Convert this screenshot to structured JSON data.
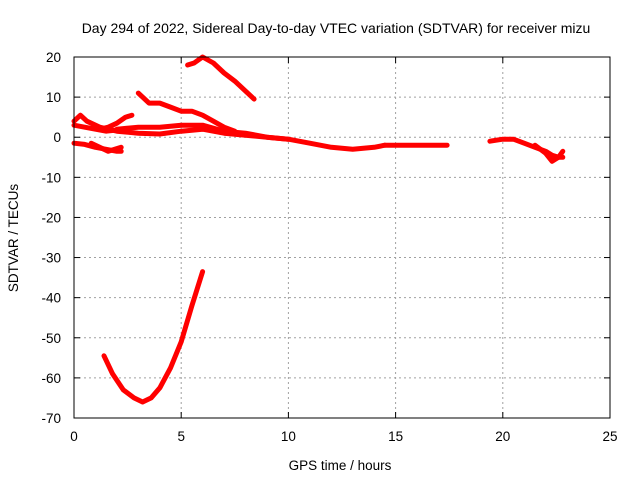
{
  "chart_data": {
    "type": "line",
    "title": "Day 294 of 2022, Sidereal Day-to-day VTEC variation (SDTVAR) for receiver mizu",
    "xlabel": "GPS time / hours",
    "ylabel": "SDTVAR / TECUs",
    "xlim": [
      0,
      25
    ],
    "ylim": [
      -70,
      20
    ],
    "xticks": [
      0,
      5,
      10,
      15,
      20,
      25
    ],
    "yticks": [
      20,
      10,
      0,
      -10,
      -20,
      -30,
      -40,
      -50,
      -60,
      -70
    ],
    "grid": true,
    "color": "#ff0000",
    "series": [
      {
        "name": "arc-1",
        "points": [
          [
            0,
            4
          ],
          [
            0.3,
            5.5
          ],
          [
            0.6,
            4
          ],
          [
            1.2,
            2.5
          ],
          [
            2,
            1.5
          ],
          [
            3,
            1
          ],
          [
            4,
            0.8
          ],
          [
            5,
            1.5
          ],
          [
            6,
            2
          ],
          [
            7,
            1
          ],
          [
            8,
            0.5
          ],
          [
            9,
            0
          ],
          [
            10,
            -0.5
          ],
          [
            11,
            -1.5
          ],
          [
            12,
            -2.5
          ],
          [
            13,
            -3
          ],
          [
            14,
            -2.5
          ],
          [
            14.5,
            -2
          ]
        ]
      },
      {
        "name": "arc-2",
        "points": [
          [
            0,
            -1.5
          ],
          [
            0.5,
            -1.8
          ],
          [
            1,
            -2.5
          ],
          [
            1.5,
            -3
          ],
          [
            2,
            -3.5
          ],
          [
            2.2,
            -3.5
          ]
        ]
      },
      {
        "name": "arc-3",
        "points": [
          [
            0,
            3
          ],
          [
            0.5,
            2.5
          ],
          [
            1,
            2
          ],
          [
            1.5,
            1.5
          ],
          [
            2,
            1.8
          ],
          [
            2.5,
            2
          ]
        ]
      },
      {
        "name": "arc-4",
        "points": [
          [
            0.8,
            -1.5
          ],
          [
            1.2,
            -2.5
          ],
          [
            1.6,
            -3.5
          ],
          [
            1.9,
            -3
          ],
          [
            2.2,
            -2.5
          ]
        ]
      },
      {
        "name": "arc-5",
        "points": [
          [
            1.2,
            2
          ],
          [
            1.6,
            2.5
          ],
          [
            2,
            3.5
          ],
          [
            2.4,
            5
          ],
          [
            2.7,
            5.5
          ]
        ]
      },
      {
        "name": "arc-6",
        "points": [
          [
            3,
            11
          ],
          [
            3.5,
            8.5
          ],
          [
            4,
            8.5
          ],
          [
            4.5,
            7.5
          ],
          [
            5,
            6.5
          ],
          [
            5.5,
            6.5
          ],
          [
            6,
            5.5
          ],
          [
            6.5,
            4
          ],
          [
            7,
            2.5
          ],
          [
            7.5,
            1.5
          ]
        ]
      },
      {
        "name": "arc-7",
        "points": [
          [
            2,
            2
          ],
          [
            3,
            2.5
          ],
          [
            4,
            2.5
          ],
          [
            5,
            3
          ],
          [
            6,
            3
          ],
          [
            7,
            1.5
          ],
          [
            8,
            1
          ],
          [
            9,
            0
          ],
          [
            10,
            -0.5
          ]
        ]
      },
      {
        "name": "arc-8",
        "points": [
          [
            5.3,
            18
          ],
          [
            5.6,
            18.5
          ],
          [
            6,
            20
          ],
          [
            6.5,
            18.5
          ],
          [
            7,
            16
          ],
          [
            7.5,
            14
          ],
          [
            8,
            11.5
          ],
          [
            8.4,
            9.5
          ]
        ]
      },
      {
        "name": "arc-9",
        "points": [
          [
            1.4,
            -54.5
          ],
          [
            1.8,
            -59
          ],
          [
            2.3,
            -63
          ],
          [
            2.8,
            -65
          ],
          [
            3.2,
            -66
          ],
          [
            3.6,
            -65
          ],
          [
            4,
            -62.5
          ],
          [
            4.5,
            -57.5
          ],
          [
            5,
            -51
          ],
          [
            5.5,
            -42
          ],
          [
            6,
            -33.5
          ]
        ]
      },
      {
        "name": "arc-10",
        "points": [
          [
            14.5,
            -2
          ],
          [
            15,
            -2
          ],
          [
            16,
            -2
          ],
          [
            17,
            -2
          ],
          [
            17.4,
            -2
          ]
        ]
      },
      {
        "name": "arc-11",
        "points": [
          [
            19.4,
            -1
          ],
          [
            20,
            -0.5
          ],
          [
            20.5,
            -0.5
          ],
          [
            21,
            -1.5
          ],
          [
            21.5,
            -2.5
          ],
          [
            22,
            -3.5
          ],
          [
            22.3,
            -4.5
          ],
          [
            22.6,
            -5
          ],
          [
            22.8,
            -5
          ]
        ]
      },
      {
        "name": "arc-12",
        "points": [
          [
            21.5,
            -2
          ],
          [
            22,
            -4
          ],
          [
            22.3,
            -6
          ],
          [
            22.6,
            -5
          ],
          [
            22.8,
            -3.5
          ]
        ]
      }
    ]
  }
}
